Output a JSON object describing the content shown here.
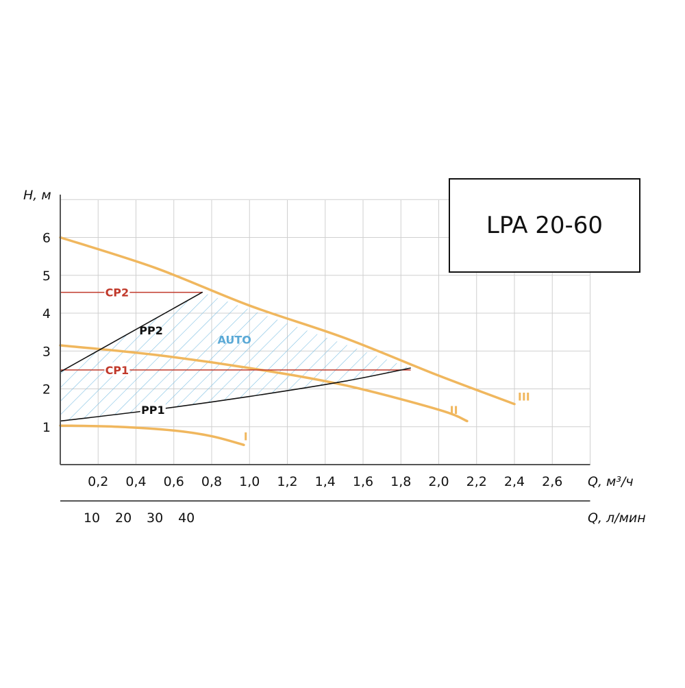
{
  "chart_data": {
    "type": "line",
    "title": "LPA 20-60",
    "ylabel": "H, м",
    "xlabel": "Q, м³/ч",
    "x2label": "Q, л/мин",
    "xlim": [
      0,
      2.8
    ],
    "ylim": [
      0,
      7
    ],
    "grid": true,
    "y_ticks": [
      "1",
      "2",
      "3",
      "4",
      "5",
      "6"
    ],
    "y_tick_values": [
      1,
      2,
      3,
      4,
      5,
      6
    ],
    "x_ticks": [
      "0,2",
      "0,4",
      "0,6",
      "0,8",
      "1,0",
      "1,2",
      "1,4",
      "1,6",
      "1,8",
      "2,0",
      "2,2",
      "2,4",
      "2,6"
    ],
    "x_tick_values": [
      0.2,
      0.4,
      0.6,
      0.8,
      1.0,
      1.2,
      1.4,
      1.6,
      1.8,
      2.0,
      2.2,
      2.4,
      2.6
    ],
    "x2_ticks": [
      "10",
      "20",
      "30",
      "40"
    ],
    "x2_tick_values": [
      10,
      20,
      30,
      40
    ],
    "series": [
      {
        "name": "I",
        "color": "#f0b75e",
        "x": [
          0,
          0.3,
          0.6,
          0.8,
          0.97
        ],
        "y": [
          1.03,
          1.0,
          0.9,
          0.75,
          0.52
        ]
      },
      {
        "name": "II",
        "color": "#f0b75e",
        "x": [
          0,
          0.5,
          1.0,
          1.5,
          2.0,
          2.15
        ],
        "y": [
          3.15,
          2.9,
          2.55,
          2.1,
          1.45,
          1.15
        ]
      },
      {
        "name": "III",
        "color": "#f0b75e",
        "x": [
          0,
          0.5,
          1.0,
          1.5,
          2.0,
          2.4
        ],
        "y": [
          6.0,
          5.2,
          4.2,
          3.35,
          2.35,
          1.6
        ]
      },
      {
        "name": "CP2",
        "color": "#c0392b",
        "x": [
          0,
          0.75
        ],
        "y": [
          4.55,
          4.55
        ]
      },
      {
        "name": "CP1",
        "color": "#c0392b",
        "x": [
          0,
          1.85
        ],
        "y": [
          2.5,
          2.5
        ]
      },
      {
        "name": "PP2",
        "color": "#111111",
        "x": [
          0,
          0.75
        ],
        "y": [
          2.45,
          4.55
        ]
      },
      {
        "name": "PP1",
        "color": "#111111",
        "x": [
          0,
          0.5,
          1.0,
          1.5,
          1.85
        ],
        "y": [
          1.15,
          1.45,
          1.8,
          2.2,
          2.55
        ]
      }
    ],
    "auto_region": {
      "label": "AUTO",
      "color": "#5aa9d6",
      "x": [
        0,
        0.75,
        1.85,
        1.5,
        1.0,
        0.5,
        0
      ],
      "y": [
        2.45,
        4.55,
        2.55,
        2.2,
        1.8,
        1.45,
        1.15
      ]
    },
    "series_labels": [
      {
        "text": "CP2",
        "x": 0.3,
        "y": 4.55,
        "color": "#c0392b"
      },
      {
        "text": "CP1",
        "x": 0.3,
        "y": 2.5,
        "color": "#c0392b"
      },
      {
        "text": "PP2",
        "x": 0.48,
        "y": 3.55,
        "color": "#111111"
      },
      {
        "text": "PP1",
        "x": 0.49,
        "y": 1.45,
        "color": "#111111"
      },
      {
        "text": "AUTO",
        "x": 0.92,
        "y": 3.3,
        "color": "#5aa9d6"
      },
      {
        "text": "I",
        "x": 0.98,
        "y": 0.75,
        "color": "#f0b75e"
      },
      {
        "text": "II",
        "x": 2.08,
        "y": 1.45,
        "color": "#f0b75e"
      },
      {
        "text": "III",
        "x": 2.45,
        "y": 1.8,
        "color": "#f0b75e"
      }
    ]
  }
}
